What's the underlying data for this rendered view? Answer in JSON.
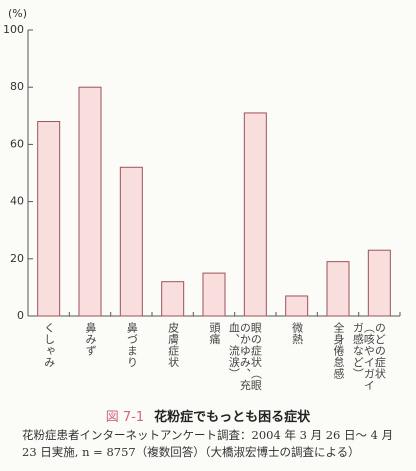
{
  "chart_data": {
    "type": "bar",
    "figure_label": "図 7-1",
    "title": "花粉症でもっとも困る症状",
    "caption": "花粉症患者インターネットアンケート調査：2004 年 3 月 26 日～ 4 月 23 日実施, n = 8757（複数回答）（大橋淑宏博士の調査による）",
    "y_label": "(%)",
    "categories": [
      "くしゃみ",
      "鼻みず",
      "鼻づまり",
      "皮膚症状",
      "頭痛",
      "眼の症状（眼のかゆみ、充血、流涙）",
      "微熱",
      "全身倦怠感",
      "のどの症状（咳やイガイガ感など）"
    ],
    "values": [
      68,
      80,
      52,
      12,
      15,
      71,
      7,
      19,
      23
    ],
    "color": "#f9dede",
    "edge_color": "#a0525a",
    "ylim": [
      0,
      100
    ],
    "yticks": [
      0,
      20,
      40,
      60,
      80,
      100
    ],
    "grid": false
  }
}
